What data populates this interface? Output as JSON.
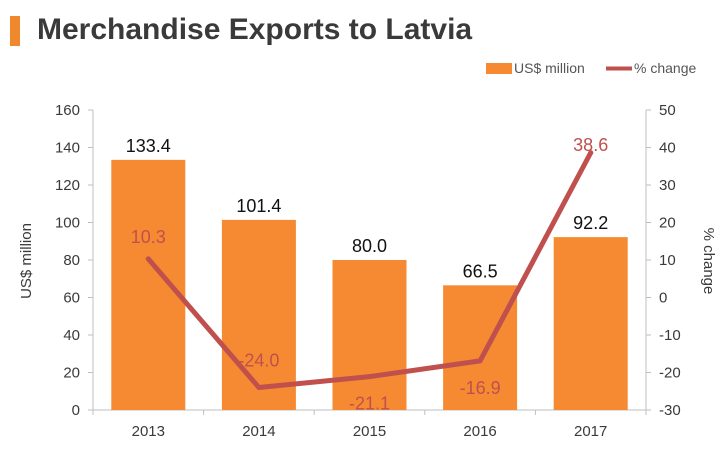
{
  "title": "Merchandise Exports to Latvia",
  "colors": {
    "bar": "#f58a32",
    "line": "#c0504d",
    "title_accent": "#f0892e",
    "axis": "#bfbfbf"
  },
  "chart_data": {
    "type": "bar",
    "categories": [
      "2013",
      "2014",
      "2015",
      "2016",
      "2017"
    ],
    "series": [
      {
        "name": "US$ million",
        "type": "bar",
        "axis": "left",
        "values": [
          133.4,
          101.4,
          80.0,
          66.5,
          92.2
        ],
        "labels": [
          "133.4",
          "101.4",
          "80.0",
          "66.5",
          "92.2"
        ]
      },
      {
        "name": "% change",
        "type": "line",
        "axis": "right",
        "values": [
          10.3,
          -24.0,
          -21.1,
          -16.9,
          38.6
        ],
        "labels": [
          "10.3",
          "-24.0",
          "-21.1",
          "-16.9",
          "38.6"
        ]
      }
    ],
    "ylabel": "US$ million",
    "y2label": "% change",
    "ylim": [
      0,
      160
    ],
    "y2lim": [
      -30,
      50
    ],
    "yticks": [
      "0",
      "20",
      "40",
      "60",
      "80",
      "100",
      "120",
      "140",
      "160"
    ],
    "y2ticks": [
      "-30",
      "-20",
      "-10",
      "0",
      "10",
      "20",
      "30",
      "40",
      "50"
    ],
    "legend_position": "top-right",
    "grid": false
  }
}
